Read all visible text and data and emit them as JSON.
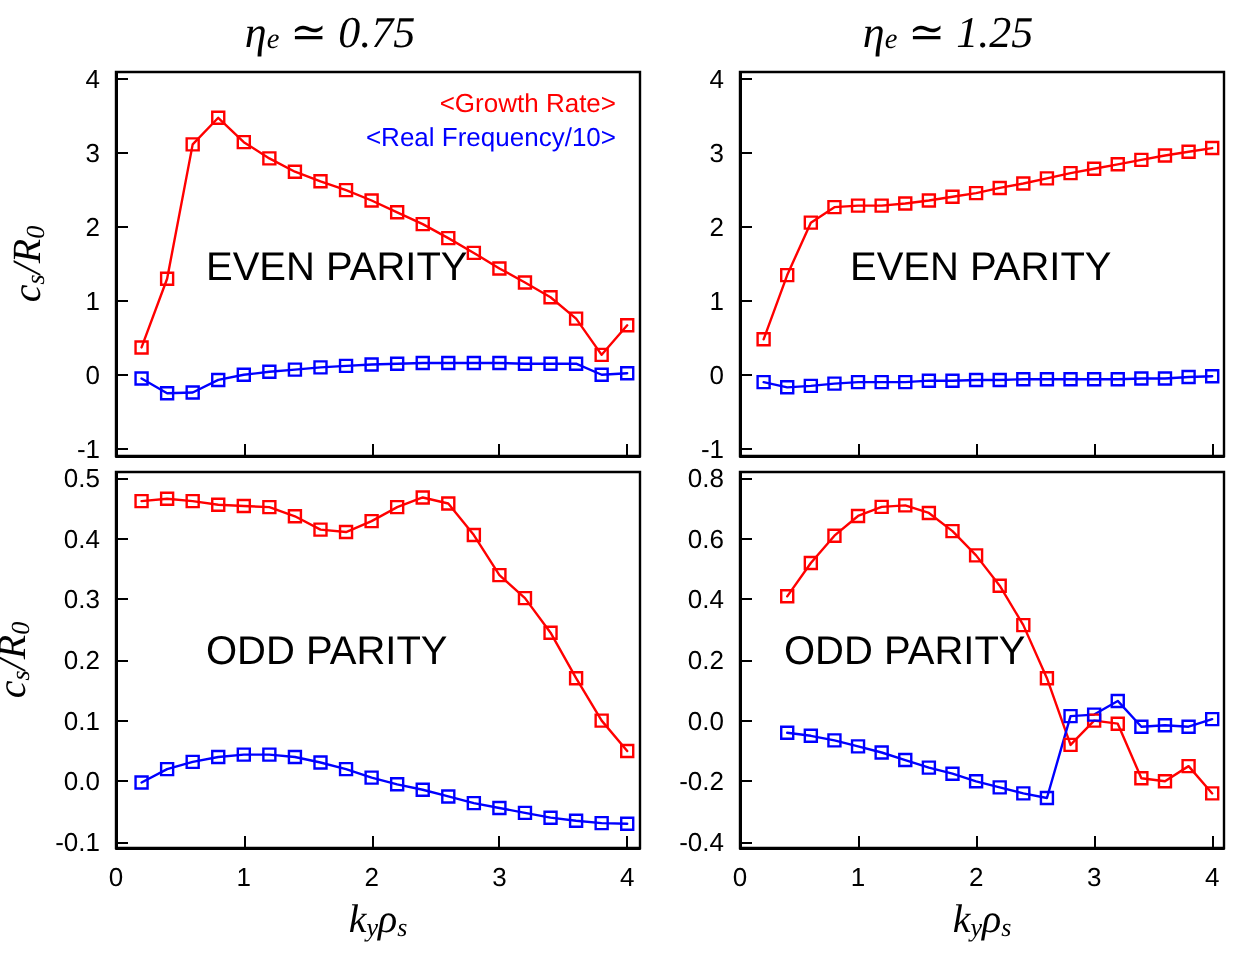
{
  "chart_data": [
    {
      "type": "line",
      "title": "η$_{e}$ ≃ 0.75",
      "ylabel": "c$_{s}$/R$_{0}$",
      "annotations": [
        "EVEN PARITY"
      ],
      "x": [
        0.2,
        0.4,
        0.6,
        0.8,
        1.0,
        1.2,
        1.4,
        1.6,
        1.8,
        2.0,
        2.2,
        2.4,
        2.6,
        2.8,
        3.0,
        3.2,
        3.4,
        3.6,
        3.8,
        4.0
      ],
      "series": [
        {
          "name": "<Growth Rate>",
          "color": "#ff0000",
          "values": [
            0.37,
            1.3,
            3.12,
            3.48,
            3.15,
            2.93,
            2.75,
            2.62,
            2.5,
            2.36,
            2.2,
            2.04,
            1.85,
            1.65,
            1.44,
            1.25,
            1.05,
            0.76,
            0.27,
            0.67
          ]
        },
        {
          "name": "<Real Frequency/10>",
          "color": "#0000ff",
          "values": [
            -0.05,
            -0.25,
            -0.24,
            -0.07,
            0.0,
            0.04,
            0.07,
            0.1,
            0.12,
            0.14,
            0.15,
            0.16,
            0.16,
            0.16,
            0.16,
            0.15,
            0.15,
            0.15,
            0.0,
            0.02
          ]
        }
      ],
      "xlim": [
        0,
        4.1
      ],
      "xticks": [
        0,
        1,
        2,
        3,
        4
      ],
      "ylim": [
        -1.1,
        4.1
      ],
      "yticks": [
        -1,
        0,
        1,
        2,
        3,
        4
      ],
      "tick_labels": "y",
      "marker": "square",
      "legend": "top right",
      "grid": false
    },
    {
      "type": "line",
      "title": "η$_{e}$ ≃ 1.25",
      "annotations": [
        "EVEN PARITY"
      ],
      "x": [
        0.2,
        0.4,
        0.6,
        0.8,
        1.0,
        1.2,
        1.4,
        1.6,
        1.8,
        2.0,
        2.2,
        2.4,
        2.6,
        2.8,
        3.0,
        3.2,
        3.4,
        3.6,
        3.8,
        4.0
      ],
      "series": [
        {
          "color": "#ff0000",
          "values": [
            0.48,
            1.35,
            2.06,
            2.27,
            2.29,
            2.29,
            2.32,
            2.36,
            2.41,
            2.46,
            2.53,
            2.59,
            2.66,
            2.73,
            2.79,
            2.85,
            2.91,
            2.97,
            3.02,
            3.07
          ]
        },
        {
          "color": "#0000ff",
          "values": [
            -0.1,
            -0.17,
            -0.15,
            -0.12,
            -0.1,
            -0.1,
            -0.1,
            -0.08,
            -0.08,
            -0.07,
            -0.07,
            -0.06,
            -0.06,
            -0.06,
            -0.06,
            -0.06,
            -0.05,
            -0.05,
            -0.03,
            -0.02
          ]
        }
      ],
      "xlim": [
        0,
        4.1
      ],
      "xticks": [
        0,
        1,
        2,
        3,
        4
      ],
      "ylim": [
        -1.1,
        4.1
      ],
      "yticks": [
        -1,
        0,
        1,
        2,
        3,
        4
      ],
      "tick_labels": "y",
      "marker": "square",
      "grid": false
    },
    {
      "type": "line",
      "xlabel": "k$_{y}$ρ$_{s}$",
      "ylabel": "c$_{s}$/R$_{0}$",
      "annotations": [
        "ODD PARITY"
      ],
      "x": [
        0.2,
        0.4,
        0.6,
        0.8,
        1.0,
        1.2,
        1.4,
        1.6,
        1.8,
        2.0,
        2.2,
        2.4,
        2.6,
        2.8,
        3.0,
        3.2,
        3.4,
        3.6,
        3.8,
        4.0
      ],
      "series": [
        {
          "color": "#ff0000",
          "values": [
            0.462,
            0.466,
            0.462,
            0.456,
            0.454,
            0.452,
            0.437,
            0.415,
            0.411,
            0.429,
            0.452,
            0.468,
            0.458,
            0.406,
            0.34,
            0.302,
            0.245,
            0.17,
            0.1,
            0.05
          ]
        },
        {
          "color": "#0000ff",
          "values": [
            -0.002,
            0.02,
            0.032,
            0.04,
            0.044,
            0.044,
            0.04,
            0.031,
            0.02,
            0.006,
            -0.005,
            -0.014,
            -0.025,
            -0.036,
            -0.044,
            -0.052,
            -0.06,
            -0.065,
            -0.069,
            -0.07
          ]
        }
      ],
      "xlim": [
        0,
        4.1
      ],
      "xticks": [
        0,
        1,
        2,
        3,
        4
      ],
      "ylim": [
        -0.11,
        0.51
      ],
      "yticks": [
        {
          "value": -0.1,
          "label": "-0.1"
        },
        {
          "value": 0,
          "label": "0.0"
        },
        {
          "value": 0.1,
          "label": "0.1"
        },
        {
          "value": 0.2,
          "label": "0.2"
        },
        {
          "value": 0.3,
          "label": "0.3"
        },
        {
          "value": 0.4,
          "label": "0.4"
        },
        {
          "value": 0.5,
          "label": "0.5"
        }
      ],
      "marker": "square",
      "grid": false
    },
    {
      "type": "line",
      "xlabel": "k$_{y}$ρ$_{s}$",
      "annotations": [
        "ODD PARITY"
      ],
      "x": [
        0.4,
        0.6,
        0.8,
        1.0,
        1.2,
        1.4,
        1.6,
        1.8,
        2.0,
        2.2,
        2.4,
        2.6,
        2.8,
        3.0,
        3.2,
        3.4,
        3.6,
        3.8,
        4.0
      ],
      "series": [
        {
          "color": "#ff0000",
          "values": [
            0.41,
            0.52,
            0.61,
            0.675,
            0.705,
            0.71,
            0.685,
            0.625,
            0.545,
            0.445,
            0.315,
            0.14,
            -0.08,
            0.0,
            -0.01,
            -0.19,
            -0.2,
            -0.15,
            -0.24
          ]
        },
        {
          "color": "#0000ff",
          "values": [
            -0.04,
            -0.05,
            -0.065,
            -0.085,
            -0.105,
            -0.13,
            -0.155,
            -0.175,
            -0.2,
            -0.22,
            -0.24,
            -0.255,
            0.015,
            0.02,
            0.065,
            -0.02,
            -0.015,
            -0.02,
            0.005
          ]
        }
      ],
      "xlim": [
        0,
        4.1
      ],
      "xticks": [
        0,
        1,
        2,
        3,
        4
      ],
      "ylim": [
        -0.42,
        0.82
      ],
      "yticks": [
        {
          "value": -0.4,
          "label": "-0.4"
        },
        {
          "value": -0.2,
          "label": "-0.2"
        },
        {
          "value": 0,
          "label": "0.0"
        },
        {
          "value": 0.2,
          "label": "0.2"
        },
        {
          "value": 0.4,
          "label": "0.4"
        },
        {
          "value": 0.6,
          "label": "0.6"
        },
        {
          "value": 0.8,
          "label": "0.8"
        }
      ],
      "marker": "square",
      "grid": false
    }
  ]
}
